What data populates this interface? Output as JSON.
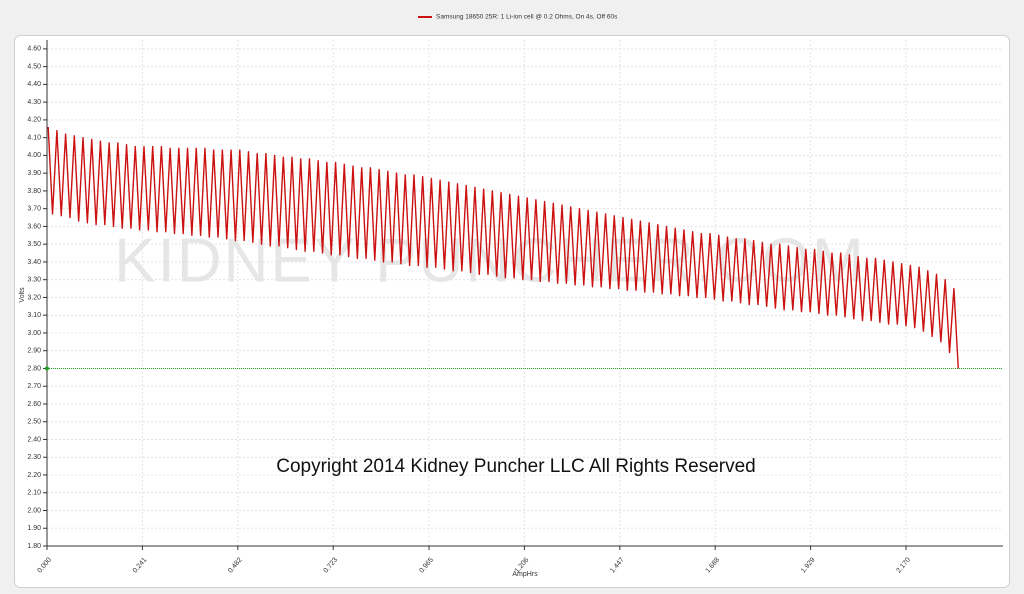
{
  "chart_data": {
    "type": "line",
    "legend": "top",
    "grid": true,
    "xlabel": "AmpHrs",
    "ylabel": "Volts",
    "watermark": "KIDNEY PUNCHER.COM",
    "annotation": "Copyright 2014 Kidney Puncher LLC All Rights Reserved",
    "reference_line": {
      "value": 2.8,
      "color": "#22a022"
    },
    "xlim": [
      0,
      2.415
    ],
    "ylim": [
      1.8,
      4.65
    ],
    "xticks": [
      {
        "value": 0,
        "label": "0.000"
      },
      0.241,
      0.482,
      0.723,
      0.965,
      1.206,
      1.447,
      1.688,
      1.929,
      {
        "value": 2.17,
        "label": "2.170"
      }
    ],
    "yticks": [
      {
        "value": 1.8,
        "label": "1.80"
      },
      {
        "value": 1.9,
        "label": "1.90"
      },
      {
        "value": 2.0,
        "label": "2.00"
      },
      {
        "value": 2.1,
        "label": "2.10"
      },
      {
        "value": 2.2,
        "label": "2.20"
      },
      {
        "value": 2.3,
        "label": "2.30"
      },
      {
        "value": 2.4,
        "label": "2.40"
      },
      {
        "value": 2.5,
        "label": "2.50"
      },
      {
        "value": 2.6,
        "label": "2.60"
      },
      {
        "value": 2.7,
        "label": "2.70"
      },
      {
        "value": 2.8,
        "label": "2.80"
      },
      {
        "value": 2.9,
        "label": "2.90"
      },
      {
        "value": 3.0,
        "label": "3.00"
      },
      {
        "value": 3.1,
        "label": "3.10"
      },
      {
        "value": 3.2,
        "label": "3.20"
      },
      {
        "value": 3.3,
        "label": "3.30"
      },
      {
        "value": 3.4,
        "label": "3.40"
      },
      {
        "value": 3.5,
        "label": "3.50"
      },
      {
        "value": 3.6,
        "label": "3.60"
      },
      {
        "value": 3.7,
        "label": "3.70"
      },
      {
        "value": 3.8,
        "label": "3.80"
      },
      {
        "value": 3.9,
        "label": "3.90"
      },
      {
        "value": 4.0,
        "label": "4.00"
      },
      {
        "value": 4.1,
        "label": "4.10"
      },
      {
        "value": 4.2,
        "label": "4.20"
      },
      {
        "value": 4.3,
        "label": "4.30"
      },
      {
        "value": 4.4,
        "label": "4.40"
      },
      {
        "value": 4.5,
        "label": "4.50"
      },
      {
        "value": 4.6,
        "label": "4.60"
      }
    ],
    "x": [
      0.003,
      0.014,
      0.025,
      0.036,
      0.047,
      0.058,
      0.069,
      0.08,
      0.091,
      0.102,
      0.113,
      0.124,
      0.135,
      0.146,
      0.157,
      0.168,
      0.179,
      0.19,
      0.201,
      0.212,
      0.223,
      0.234,
      0.245,
      0.256,
      0.267,
      0.278,
      0.289,
      0.3,
      0.311,
      0.322,
      0.333,
      0.344,
      0.355,
      0.366,
      0.377,
      0.388,
      0.399,
      0.41,
      0.421,
      0.432,
      0.443,
      0.454,
      0.465,
      0.476,
      0.487,
      0.498,
      0.509,
      0.52,
      0.531,
      0.542,
      0.553,
      0.564,
      0.575,
      0.586,
      0.597,
      0.608,
      0.619,
      0.63,
      0.641,
      0.652,
      0.663,
      0.674,
      0.685,
      0.696,
      0.707,
      0.718,
      0.729,
      0.74,
      0.751,
      0.762,
      0.773,
      0.784,
      0.795,
      0.806,
      0.817,
      0.828,
      0.839,
      0.85,
      0.861,
      0.872,
      0.883,
      0.894,
      0.905,
      0.916,
      0.927,
      0.938,
      0.949,
      0.96,
      0.971,
      0.982,
      0.993,
      1.004,
      1.015,
      1.026,
      1.037,
      1.048,
      1.059,
      1.07,
      1.081,
      1.092,
      1.103,
      1.114,
      1.125,
      1.136,
      1.147,
      1.158,
      1.169,
      1.18,
      1.191,
      1.202,
      1.213,
      1.224,
      1.235,
      1.246,
      1.257,
      1.268,
      1.279,
      1.29,
      1.301,
      1.312,
      1.323,
      1.334,
      1.345,
      1.356,
      1.367,
      1.378,
      1.389,
      1.4,
      1.411,
      1.422,
      1.433,
      1.444,
      1.455,
      1.466,
      1.477,
      1.488,
      1.499,
      1.51,
      1.521,
      1.532,
      1.543,
      1.554,
      1.565,
      1.576,
      1.587,
      1.598,
      1.609,
      1.62,
      1.631,
      1.642,
      1.653,
      1.664,
      1.675,
      1.686,
      1.697,
      1.708,
      1.719,
      1.73,
      1.741,
      1.752,
      1.763,
      1.774,
      1.785,
      1.796,
      1.807,
      1.818,
      1.829,
      1.84,
      1.851,
      1.862,
      1.873,
      1.884,
      1.895,
      1.906,
      1.917,
      1.928,
      1.939,
      1.95,
      1.961,
      1.972,
      1.983,
      1.994,
      2.005,
      2.016,
      2.027,
      2.038,
      2.049,
      2.06,
      2.071,
      2.082,
      2.093,
      2.104,
      2.115,
      2.126,
      2.137,
      2.148,
      2.159,
      2.17,
      2.181,
      2.192,
      2.203,
      2.214,
      2.225,
      2.236,
      2.247,
      2.258,
      2.269,
      2.28,
      2.291,
      2.302
    ],
    "series": [
      {
        "name": "Samsung 18650 25R: 1 Li-ion cell @ 0.2 Ohms, On 4s, Off 60s",
        "color": "#cc1111",
        "values": [
          4.16,
          3.67,
          4.14,
          3.66,
          4.12,
          3.65,
          4.11,
          3.63,
          4.1,
          3.62,
          4.09,
          3.61,
          4.08,
          3.61,
          4.07,
          3.6,
          4.07,
          3.59,
          4.06,
          3.59,
          4.05,
          3.58,
          4.05,
          3.58,
          4.05,
          3.57,
          4.05,
          3.57,
          4.04,
          3.56,
          4.04,
          3.56,
          4.04,
          3.55,
          4.04,
          3.55,
          4.04,
          3.54,
          4.03,
          3.54,
          4.03,
          3.53,
          4.03,
          3.52,
          4.03,
          3.52,
          4.02,
          3.51,
          4.01,
          3.5,
          4.01,
          3.49,
          4.0,
          3.49,
          3.99,
          3.48,
          3.99,
          3.47,
          3.98,
          3.46,
          3.98,
          3.46,
          3.97,
          3.45,
          3.96,
          3.44,
          3.96,
          3.44,
          3.95,
          3.43,
          3.94,
          3.42,
          3.93,
          3.42,
          3.93,
          3.41,
          3.92,
          3.4,
          3.91,
          3.4,
          3.9,
          3.39,
          3.89,
          3.38,
          3.89,
          3.38,
          3.88,
          3.37,
          3.87,
          3.37,
          3.86,
          3.36,
          3.85,
          3.35,
          3.84,
          3.35,
          3.83,
          3.34,
          3.82,
          3.33,
          3.81,
          3.33,
          3.8,
          3.32,
          3.79,
          3.31,
          3.78,
          3.31,
          3.77,
          3.3,
          3.76,
          3.3,
          3.75,
          3.29,
          3.74,
          3.29,
          3.73,
          3.28,
          3.72,
          3.28,
          3.71,
          3.27,
          3.7,
          3.27,
          3.69,
          3.26,
          3.68,
          3.26,
          3.67,
          3.25,
          3.66,
          3.25,
          3.65,
          3.24,
          3.64,
          3.24,
          3.63,
          3.23,
          3.62,
          3.23,
          3.61,
          3.22,
          3.6,
          3.22,
          3.59,
          3.21,
          3.58,
          3.21,
          3.57,
          3.2,
          3.56,
          3.2,
          3.56,
          3.19,
          3.55,
          3.18,
          3.54,
          3.18,
          3.53,
          3.17,
          3.53,
          3.16,
          3.52,
          3.16,
          3.51,
          3.15,
          3.5,
          3.14,
          3.5,
          3.13,
          3.49,
          3.13,
          3.48,
          3.12,
          3.47,
          3.12,
          3.47,
          3.11,
          3.46,
          3.1,
          3.45,
          3.1,
          3.45,
          3.09,
          3.44,
          3.08,
          3.43,
          3.07,
          3.42,
          3.07,
          3.42,
          3.06,
          3.41,
          3.05,
          3.4,
          3.05,
          3.39,
          3.04,
          3.38,
          3.03,
          3.37,
          3.01,
          3.35,
          2.98,
          3.33,
          2.95,
          3.3,
          2.89,
          3.25,
          2.8
        ]
      }
    ]
  }
}
